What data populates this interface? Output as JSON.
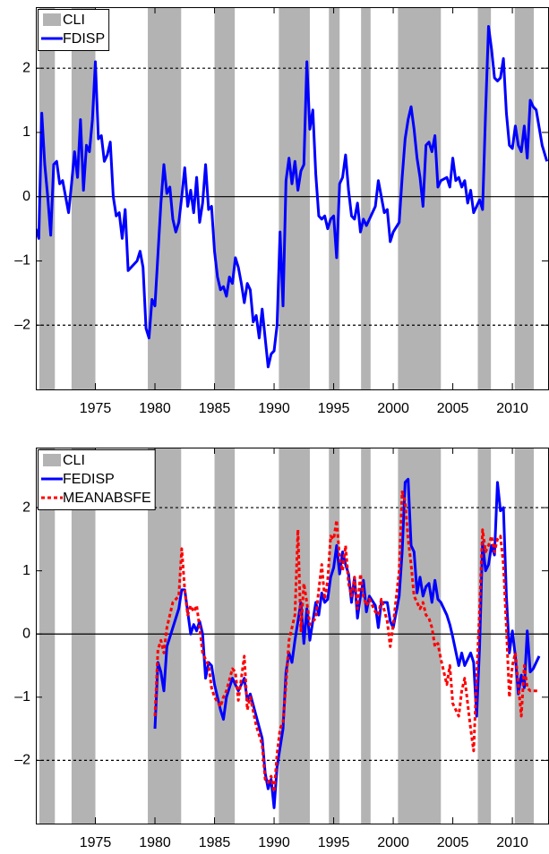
{
  "chart_data": [
    {
      "type": "line",
      "xlim": [
        1970,
        2013
      ],
      "xticks": [
        1975,
        1980,
        1985,
        1990,
        1995,
        2000,
        2005,
        2010
      ],
      "ylim": [
        -3,
        2.95
      ],
      "yticks": [
        {
          "value": -2,
          "label": "–2"
        },
        {
          "value": -1,
          "label": "–1"
        },
        0,
        1,
        2
      ],
      "hlines": [
        {
          "value": 0,
          "style": "solid"
        },
        {
          "value": 2,
          "style": "dashed"
        },
        {
          "value": -2,
          "style": "dashed"
        }
      ],
      "legend": "upper left",
      "shaded": {
        "name": "CLI",
        "color": "#b3b3b3",
        "regions": [
          [
            1970.3,
            1971.6
          ],
          [
            1973.0,
            1975.0
          ],
          [
            1979.4,
            1982.2
          ],
          [
            1985.0,
            1986.7
          ],
          [
            1990.4,
            1993.0
          ],
          [
            1994.6,
            1995.5
          ],
          [
            1997.3,
            1998.1
          ],
          [
            2000.4,
            2004.0
          ],
          [
            2007.1,
            2008.2
          ],
          [
            2010.2,
            2011.8
          ]
        ]
      },
      "series": [
        {
          "name": "FDISP",
          "color": "#0000ff",
          "style": "solid",
          "x": [
            1970.0,
            1970.25,
            1970.5,
            1970.75,
            1971.0,
            1971.25,
            1971.5,
            1971.75,
            1972.0,
            1972.25,
            1972.5,
            1972.75,
            1973.0,
            1973.25,
            1973.5,
            1973.75,
            1974.0,
            1974.25,
            1974.5,
            1974.75,
            1975.0,
            1975.25,
            1975.5,
            1975.75,
            1976.0,
            1976.25,
            1976.5,
            1976.75,
            1977.0,
            1977.25,
            1977.5,
            1977.75,
            1978.0,
            1978.5,
            1978.75,
            1979.0,
            1979.25,
            1979.5,
            1979.75,
            1980.0,
            1980.25,
            1980.5,
            1980.75,
            1981.0,
            1981.25,
            1981.5,
            1981.75,
            1982.0,
            1982.25,
            1982.5,
            1982.75,
            1983.0,
            1983.25,
            1983.5,
            1983.75,
            1984.0,
            1984.25,
            1984.5,
            1984.75,
            1985.0,
            1985.25,
            1985.5,
            1985.75,
            1986.0,
            1986.25,
            1986.5,
            1986.75,
            1987.0,
            1987.25,
            1987.5,
            1987.75,
            1988.0,
            1988.25,
            1988.5,
            1988.75,
            1989.0,
            1989.25,
            1989.5,
            1989.75,
            1990.0,
            1990.25,
            1990.5,
            1990.75,
            1991.0,
            1991.25,
            1991.5,
            1991.75,
            1992.0,
            1992.25,
            1992.5,
            1992.75,
            1993.0,
            1993.25,
            1993.5,
            1993.75,
            1994.0,
            1994.25,
            1994.5,
            1994.75,
            1995.0,
            1995.25,
            1995.5,
            1995.75,
            1996.0,
            1996.25,
            1996.5,
            1996.75,
            1997.0,
            1997.25,
            1997.5,
            1997.75,
            1998.0,
            1998.5,
            1998.75,
            1999.0,
            1999.25,
            1999.5,
            1999.75,
            2000.0,
            2000.5,
            2000.75,
            2001.0,
            2001.25,
            2001.5,
            2001.75,
            2002.0,
            2002.25,
            2002.5,
            2002.75,
            2003.0,
            2003.25,
            2003.5,
            2003.75,
            2004.0,
            2004.5,
            2004.75,
            2005.0,
            2005.25,
            2005.5,
            2005.75,
            2006.0,
            2006.25,
            2006.5,
            2006.75,
            2007.0,
            2007.25,
            2007.5,
            2007.75,
            2008.0,
            2008.25,
            2008.5,
            2008.75,
            2009.0,
            2009.25,
            2009.5,
            2009.75,
            2010.0,
            2010.25,
            2010.5,
            2010.75,
            2011.0,
            2011.25,
            2011.5,
            2011.75,
            2012.0,
            2012.5,
            2012.9
          ],
          "values": [
            -0.5,
            -0.65,
            1.3,
            0.5,
            0.0,
            -0.6,
            0.5,
            0.55,
            0.2,
            0.25,
            0.0,
            -0.25,
            0.2,
            0.7,
            0.3,
            1.2,
            0.1,
            0.8,
            0.7,
            1.2,
            2.1,
            0.9,
            0.95,
            0.55,
            0.65,
            0.85,
            0.0,
            -0.3,
            -0.25,
            -0.65,
            -0.2,
            -1.15,
            -1.1,
            -1.0,
            -0.85,
            -1.1,
            -2.05,
            -2.2,
            -1.6,
            -1.7,
            -0.9,
            -0.1,
            0.5,
            0.05,
            0.15,
            -0.35,
            -0.55,
            -0.4,
            0.0,
            0.45,
            -0.15,
            0.1,
            -0.25,
            0.3,
            -0.4,
            -0.1,
            0.5,
            -0.2,
            -0.15,
            -0.85,
            -1.25,
            -1.45,
            -1.4,
            -1.55,
            -1.25,
            -1.35,
            -0.95,
            -1.1,
            -1.35,
            -1.65,
            -1.35,
            -1.45,
            -1.95,
            -1.85,
            -2.2,
            -1.75,
            -2.2,
            -2.65,
            -2.45,
            -2.4,
            -2.0,
            -0.55,
            -1.7,
            0.25,
            0.6,
            0.2,
            0.55,
            0.1,
            0.4,
            0.5,
            2.1,
            1.05,
            1.35,
            0.35,
            -0.3,
            -0.35,
            -0.3,
            -0.5,
            -0.35,
            -0.3,
            -0.95,
            0.2,
            0.3,
            0.65,
            0.1,
            -0.3,
            -0.35,
            -0.1,
            -0.55,
            -0.35,
            -0.45,
            -0.35,
            -0.15,
            0.25,
            0.0,
            -0.25,
            -0.2,
            -0.7,
            -0.55,
            -0.4,
            0.3,
            0.9,
            1.2,
            1.4,
            1.05,
            0.6,
            0.3,
            -0.15,
            0.8,
            0.85,
            0.7,
            0.95,
            0.15,
            0.25,
            0.3,
            0.15,
            0.6,
            0.25,
            0.3,
            0.15,
            0.25,
            -0.1,
            0.1,
            -0.25,
            -0.15,
            -0.05,
            -0.2,
            1.3,
            2.65,
            2.3,
            1.85,
            1.8,
            1.85,
            2.15,
            1.3,
            0.8,
            0.75,
            1.1,
            0.8,
            0.7,
            1.1,
            0.6,
            1.5,
            1.4,
            1.35,
            0.8,
            0.55
          ]
        }
      ]
    },
    {
      "type": "line",
      "xlim": [
        1970,
        2013
      ],
      "xticks": [
        1975,
        1980,
        1985,
        1990,
        1995,
        2000,
        2005,
        2010
      ],
      "ylim": [
        -3,
        2.95
      ],
      "yticks": [
        {
          "value": -2,
          "label": "–2"
        },
        {
          "value": -1,
          "label": "–1"
        },
        0,
        1,
        2
      ],
      "hlines": [
        {
          "value": 0,
          "style": "solid"
        },
        {
          "value": 2,
          "style": "dashed"
        },
        {
          "value": -2,
          "style": "dashed"
        }
      ],
      "legend": "upper left",
      "shaded": {
        "name": "CLI",
        "color": "#b3b3b3",
        "regions": [
          [
            1970.3,
            1971.6
          ],
          [
            1973.0,
            1975.0
          ],
          [
            1979.4,
            1982.2
          ],
          [
            1985.0,
            1986.7
          ],
          [
            1990.4,
            1993.0
          ],
          [
            1994.6,
            1995.5
          ],
          [
            1997.3,
            1998.1
          ],
          [
            2000.4,
            2004.0
          ],
          [
            2007.1,
            2008.2
          ],
          [
            2010.2,
            2011.8
          ]
        ]
      },
      "series": [
        {
          "name": "FEDISP",
          "color": "#0000ff",
          "style": "solid",
          "x": [
            1980.0,
            1980.25,
            1980.5,
            1980.75,
            1981.0,
            1981.5,
            1982.0,
            1982.25,
            1982.5,
            1982.75,
            1983.0,
            1983.25,
            1983.5,
            1983.75,
            1984.0,
            1984.25,
            1984.5,
            1984.75,
            1985.0,
            1985.5,
            1985.75,
            1986.0,
            1986.5,
            1986.75,
            1987.0,
            1987.5,
            1987.75,
            1988.0,
            1988.5,
            1989.0,
            1989.25,
            1989.5,
            1989.75,
            1990.0,
            1990.25,
            1990.5,
            1990.75,
            1991.0,
            1991.25,
            1991.5,
            1991.75,
            1992.0,
            1992.25,
            1992.5,
            1992.75,
            1993.0,
            1993.5,
            1993.75,
            1994.0,
            1994.25,
            1994.5,
            1994.75,
            1995.0,
            1995.25,
            1995.5,
            1995.75,
            1996.0,
            1996.25,
            1996.5,
            1996.75,
            1997.0,
            1997.25,
            1997.5,
            1997.75,
            1998.0,
            1998.5,
            1998.75,
            1999.0,
            1999.5,
            1999.75,
            2000.0,
            2000.5,
            2000.75,
            2001.0,
            2001.25,
            2001.5,
            2001.75,
            2002.0,
            2002.25,
            2002.5,
            2002.75,
            2003.0,
            2003.25,
            2003.5,
            2003.75,
            2004.0,
            2004.5,
            2004.75,
            2005.0,
            2005.5,
            2005.75,
            2006.0,
            2006.5,
            2006.75,
            2007.0,
            2007.25,
            2007.5,
            2007.75,
            2008.0,
            2008.25,
            2008.5,
            2008.75,
            2009.0,
            2009.25,
            2009.5,
            2009.75,
            2010.0,
            2010.25,
            2010.5,
            2010.75,
            2011.0,
            2011.25,
            2011.5,
            2011.75,
            2012.25
          ],
          "values": [
            -1.5,
            -0.45,
            -0.6,
            -0.9,
            -0.2,
            0.1,
            0.4,
            0.7,
            0.7,
            0.35,
            0.0,
            0.15,
            0.05,
            0.2,
            0.0,
            -0.7,
            -0.45,
            -0.5,
            -0.8,
            -1.2,
            -1.35,
            -1.0,
            -0.7,
            -0.8,
            -0.9,
            -0.7,
            -1.05,
            -0.95,
            -1.3,
            -1.65,
            -2.2,
            -2.45,
            -2.3,
            -2.75,
            -2.1,
            -1.8,
            -1.5,
            -0.6,
            -0.3,
            -0.45,
            -0.1,
            0.2,
            0.5,
            -0.15,
            0.4,
            -0.1,
            0.5,
            0.3,
            0.65,
            0.5,
            0.55,
            0.9,
            1.05,
            1.4,
            0.95,
            1.3,
            1.1,
            0.95,
            0.5,
            0.9,
            0.25,
            0.6,
            0.85,
            0.35,
            0.6,
            0.45,
            0.1,
            0.5,
            0.5,
            0.2,
            0.1,
            0.6,
            1.3,
            2.4,
            2.45,
            1.4,
            1.3,
            0.65,
            0.9,
            0.6,
            0.75,
            0.8,
            0.5,
            0.85,
            0.55,
            0.5,
            0.3,
            0.15,
            -0.05,
            -0.5,
            -0.3,
            -0.5,
            -0.3,
            -0.45,
            -1.3,
            -0.2,
            1.45,
            1.0,
            1.1,
            1.4,
            1.25,
            2.4,
            1.95,
            2.0,
            0.6,
            -0.3,
            0.05,
            -0.35,
            -0.95,
            -0.65,
            -0.85,
            0.05,
            -0.6,
            -0.55,
            -0.35
          ]
        },
        {
          "name": "MEANABSFE",
          "color": "#ff0000",
          "style": "dashed",
          "x": [
            1980.0,
            1980.25,
            1980.5,
            1980.75,
            1981.0,
            1981.5,
            1982.0,
            1982.25,
            1982.5,
            1982.75,
            1983.0,
            1983.25,
            1983.5,
            1983.75,
            1984.0,
            1984.25,
            1984.5,
            1984.75,
            1985.0,
            1985.5,
            1985.75,
            1986.0,
            1986.5,
            1986.75,
            1987.0,
            1987.5,
            1987.75,
            1988.0,
            1988.5,
            1989.0,
            1989.25,
            1989.5,
            1989.75,
            1990.0,
            1990.25,
            1990.5,
            1990.75,
            1991.0,
            1991.25,
            1991.5,
            1991.75,
            1992.0,
            1992.25,
            1992.5,
            1992.75,
            1993.0,
            1993.5,
            1993.75,
            1994.0,
            1994.25,
            1994.5,
            1994.75,
            1995.0,
            1995.25,
            1995.5,
            1995.75,
            1996.0,
            1996.25,
            1996.5,
            1996.75,
            1997.0,
            1997.25,
            1997.5,
            1997.75,
            1998.0,
            1998.5,
            1998.75,
            1999.0,
            1999.5,
            1999.75,
            2000.0,
            2000.5,
            2000.75,
            2001.0,
            2001.25,
            2001.5,
            2001.75,
            2002.0,
            2002.25,
            2002.5,
            2002.75,
            2003.0,
            2003.25,
            2003.5,
            2003.75,
            2004.0,
            2004.5,
            2004.75,
            2005.0,
            2005.5,
            2005.75,
            2006.0,
            2006.5,
            2006.75,
            2007.0,
            2007.25,
            2007.5,
            2007.75,
            2008.0,
            2008.25,
            2008.5,
            2008.75,
            2009.0,
            2009.25,
            2009.5,
            2009.75,
            2010.0,
            2010.25,
            2010.5,
            2010.75,
            2011.0,
            2011.25,
            2011.5,
            2011.75,
            2012.25
          ],
          "values": [
            -1.3,
            -0.25,
            -0.1,
            -0.3,
            0.1,
            0.5,
            0.6,
            1.35,
            0.7,
            0.3,
            0.45,
            0.35,
            0.45,
            0.1,
            -0.3,
            -0.4,
            -0.5,
            -0.85,
            -1.0,
            -1.15,
            -1.0,
            -0.9,
            -0.55,
            -0.6,
            -1.05,
            -0.35,
            -1.2,
            -1.0,
            -1.45,
            -1.75,
            -2.3,
            -2.35,
            -2.25,
            -2.5,
            -1.9,
            -1.5,
            -1.4,
            -0.8,
            -0.1,
            0.1,
            0.3,
            1.65,
            0.05,
            0.8,
            0.5,
            0.15,
            0.25,
            0.7,
            1.1,
            0.55,
            0.85,
            1.55,
            1.5,
            1.8,
            1.2,
            1.0,
            1.4,
            0.8,
            0.6,
            0.9,
            0.4,
            0.95,
            0.6,
            0.45,
            0.55,
            0.35,
            0.3,
            0.55,
            0.2,
            -0.2,
            0.15,
            1.0,
            2.25,
            2.1,
            1.5,
            1.1,
            0.6,
            0.5,
            0.4,
            0.5,
            0.3,
            0.25,
            0.1,
            -0.2,
            -0.15,
            -0.4,
            -0.8,
            -0.5,
            -1.1,
            -1.3,
            -0.9,
            -0.7,
            -1.5,
            -1.85,
            -0.7,
            0.4,
            1.65,
            1.3,
            1.4,
            1.55,
            1.3,
            1.5,
            1.55,
            1.1,
            0.1,
            -1.0,
            -0.5,
            -0.3,
            -0.8,
            -1.3,
            -0.5,
            -0.85,
            -0.9,
            -0.9,
            -0.9
          ]
        }
      ]
    }
  ]
}
